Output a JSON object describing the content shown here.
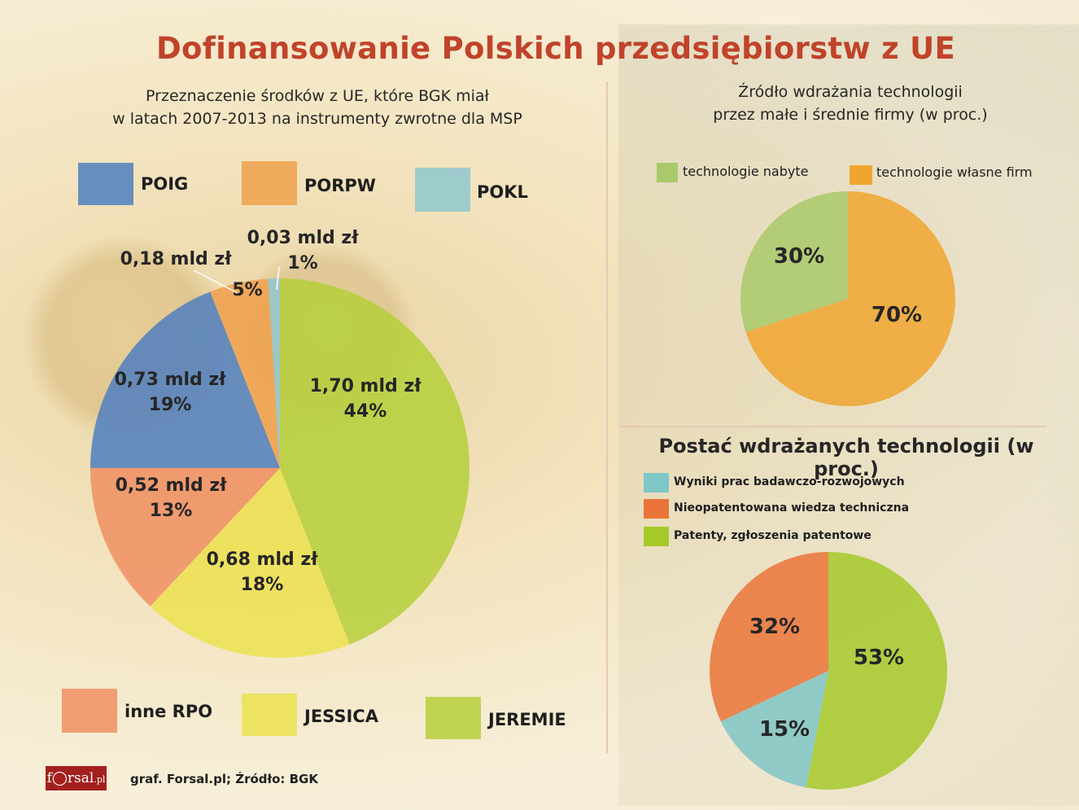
{
  "title": "Dofinansowanie Polskich przedsiębiorstw z UE",
  "left_chart": {
    "subtitle_line1": "Przeznaczenie środków z UE, które BGK  miał",
    "subtitle_line2": "w  latach 2007-2013 na instrumenty zwrotne dla MSP",
    "legend": [
      {
        "name": "POIG",
        "color": "#4f7fc0"
      },
      {
        "name": "PORPW",
        "color": "#f0a04b"
      },
      {
        "name": "POKL",
        "color": "#8fc7cf"
      },
      {
        "name": "inne RPO",
        "color": "#ee8f62"
      },
      {
        "name": "JESSICA",
        "color": "#ece050"
      },
      {
        "name": "JEREMIE",
        "color": "#b5cf3a"
      }
    ]
  },
  "top_right_chart": {
    "subtitle_line1": "Źródło wdrażania technologii",
    "subtitle_line2": "przez małe i średnie firmy (w proc.)",
    "legend": [
      {
        "name": "technologie nabyte",
        "color": "#a9c96a"
      },
      {
        "name": "technologie własne firm",
        "color": "#f0a52f"
      }
    ]
  },
  "bottom_right_chart": {
    "subtitle": "Postać wdrażanych technologii (w proc.)",
    "legend": [
      {
        "name": "Wyniki prac badawczo-rozwojowych",
        "color": "#7fc6c6"
      },
      {
        "name": "Nieopatentowana wiedza techniczna",
        "color": "#ea7438"
      },
      {
        "name": "Patenty, zgłoszenia patentowe",
        "color": "#a6c92a"
      }
    ]
  },
  "footer": {
    "logo_f": "f",
    "logo_rest": "rsal",
    "logo_pl": ".pl",
    "source": "graf. Forsal.pl;  Źródło: BGK"
  },
  "chart_data": [
    {
      "type": "pie",
      "title": "Przeznaczenie środków z UE, które BGK  miał w  latach 2007-2013 na instrumenty zwrotne dla MSP",
      "categories": [
        "JEREMIE",
        "JESSICA",
        "inne RPO",
        "POIG",
        "PORPW",
        "POKL"
      ],
      "values": [
        44,
        18,
        13,
        19,
        5,
        1
      ],
      "amounts": [
        "1,70 mld zł",
        "0,68 mld zł",
        "0,52 mld zł",
        "0,73 mld zł",
        "0,18 mld zł",
        "0,03 mld zł"
      ],
      "labels": [
        "44%",
        "18%",
        "13%",
        "19%",
        "5%",
        "1%"
      ],
      "colors": [
        "#b5cf3a",
        "#ece050",
        "#ee8f62",
        "#4f7fc0",
        "#f0a04b",
        "#8fc7cf"
      ],
      "legend_position": "top and bottom"
    },
    {
      "type": "pie",
      "title": "Źródło wdrażania technologii przez małe i średnie firmy (w proc.)",
      "categories": [
        "technologie własne firm",
        "technologie nabyte"
      ],
      "values": [
        70,
        30
      ],
      "labels": [
        "70%",
        "30%"
      ],
      "colors": [
        "#f0a52f",
        "#a9c96a"
      ],
      "legend_position": "top"
    },
    {
      "type": "pie",
      "title": "Postać wdrażanych technologii (w proc.)",
      "categories": [
        "Patenty, zgłoszenia patentowe",
        "Wyniki prac badawczo-rozwojowych",
        "Nieopatentowana wiedza techniczna"
      ],
      "values": [
        53,
        15,
        32
      ],
      "labels": [
        "53%",
        "15%",
        "32%"
      ],
      "colors": [
        "#a6c92a",
        "#7fc6c6",
        "#ea7438"
      ],
      "legend_position": "top"
    }
  ]
}
